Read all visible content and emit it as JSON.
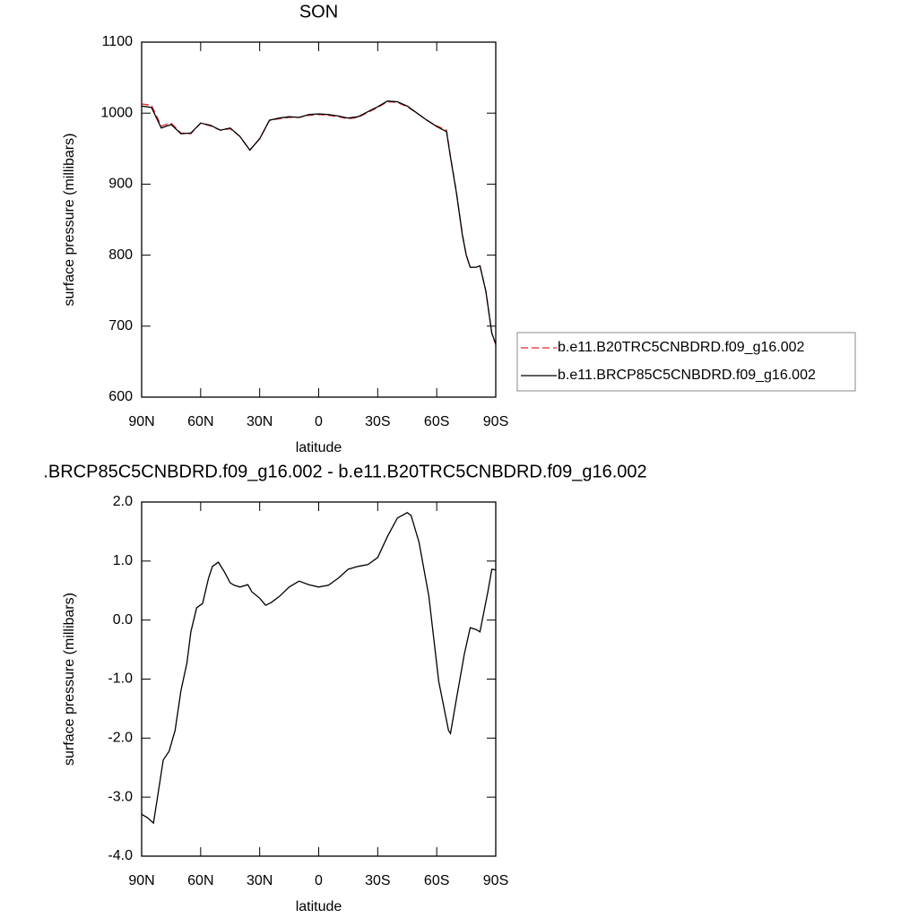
{
  "chart_data": [
    {
      "type": "line",
      "title": "SON",
      "xlabel": "latitude",
      "ylabel": "surface pressure (millibars)",
      "x": [
        90,
        85,
        80,
        75,
        70,
        65,
        60,
        55,
        50,
        45,
        40,
        35,
        30,
        25,
        20,
        15,
        10,
        5,
        0,
        -5,
        -10,
        -15,
        -20,
        -25,
        -30,
        -35,
        -40,
        -45,
        -50,
        -55,
        -60,
        -65,
        -67,
        -70,
        -73,
        -75,
        -77,
        -80,
        -82,
        -85,
        -88,
        -90
      ],
      "xlim": [
        90,
        -90
      ],
      "xticks": [
        {
          "value": 90,
          "label": "90N"
        },
        {
          "value": 60,
          "label": "60N"
        },
        {
          "value": 30,
          "label": "30N"
        },
        0,
        {
          "value": -30,
          "label": "30S"
        },
        {
          "value": -60,
          "label": "60S"
        },
        {
          "value": -90,
          "label": "90S"
        }
      ],
      "ylim": [
        600,
        1100
      ],
      "yticks": [
        600,
        700,
        800,
        900,
        1000,
        1100
      ],
      "series": [
        {
          "name": "b.e11.B20TRC5CNBDRD.f09_g16.002",
          "color": "#e8262b",
          "dash": true,
          "values": [
            1013,
            1011,
            982,
            986,
            972,
            971,
            986,
            982,
            976,
            978,
            967,
            948,
            964,
            990,
            992,
            994,
            994,
            997,
            998,
            997,
            995,
            992,
            994,
            1001,
            1008,
            1016,
            1015,
            1009,
            1000,
            990,
            982,
            976,
            939,
            889,
            829,
            800,
            783,
            783,
            785,
            749,
            690,
            674
          ]
        },
        {
          "name": "b.e11.BRCP85C5CNBDRD.f09_g16.002",
          "color": "#000000",
          "dash": false,
          "values": [
            1010,
            1008,
            979,
            984,
            971,
            972,
            986,
            983,
            976,
            979,
            967,
            948,
            964,
            990,
            993,
            995,
            994,
            998,
            999,
            998,
            996,
            993,
            995,
            1002,
            1009,
            1017,
            1016,
            1010,
            1000,
            990,
            981,
            974,
            938,
            888,
            829,
            800,
            783,
            783,
            785,
            749,
            690,
            675
          ]
        }
      ]
    },
    {
      "type": "line",
      "title": ".BRCP85C5CNBDRD.f09_g16.002 - b.e11.B20TRC5CNBDRD.f09_g16.002",
      "xlabel": "latitude",
      "ylabel": "surface pressure (millibars)",
      "x": [
        90,
        87,
        84,
        82,
        79,
        76,
        73,
        70,
        67,
        65,
        62,
        59,
        56,
        54,
        51,
        48,
        45,
        43,
        40,
        36,
        34,
        30,
        27,
        24,
        20,
        15,
        10,
        5,
        0,
        -5,
        -10,
        -15,
        -20,
        -25,
        -30,
        -35,
        -40,
        -45,
        -47,
        -51,
        -56,
        -61,
        -66,
        -67,
        -70,
        -74,
        -77,
        -80,
        -82,
        -86,
        -88,
        -90
      ],
      "xlim": [
        90,
        -90
      ],
      "xticks": [
        {
          "value": 90,
          "label": "90N"
        },
        {
          "value": 60,
          "label": "60N"
        },
        {
          "value": 30,
          "label": "30N"
        },
        0,
        {
          "value": -30,
          "label": "30S"
        },
        {
          "value": -60,
          "label": "60S"
        },
        {
          "value": -90,
          "label": "90S"
        }
      ],
      "ylim": [
        -4,
        2
      ],
      "yticks": [
        {
          "value": -4,
          "label": "-4.0"
        },
        {
          "value": -3,
          "label": "-3.0"
        },
        {
          "value": -2,
          "label": "-2.0"
        },
        {
          "value": -1,
          "label": "-1.0"
        },
        {
          "value": 0,
          "label": "0.0"
        },
        {
          "value": 1,
          "label": "1.0"
        },
        {
          "value": 2,
          "label": "2.0"
        }
      ],
      "color": "#000000",
      "values": [
        -3.29,
        -3.35,
        -3.44,
        -3.01,
        -2.37,
        -2.22,
        -1.87,
        -1.19,
        -0.73,
        -0.2,
        0.21,
        0.28,
        0.71,
        0.91,
        0.98,
        0.82,
        0.63,
        0.59,
        0.56,
        0.6,
        0.48,
        0.37,
        0.25,
        0.3,
        0.4,
        0.56,
        0.66,
        0.6,
        0.56,
        0.59,
        0.71,
        0.86,
        0.91,
        0.94,
        1.06,
        1.42,
        1.73,
        1.82,
        1.77,
        1.32,
        0.4,
        -1.04,
        -1.87,
        -1.92,
        -1.34,
        -0.58,
        -0.13,
        -0.16,
        -0.2,
        0.48,
        0.86,
        0.85
      ]
    }
  ]
}
